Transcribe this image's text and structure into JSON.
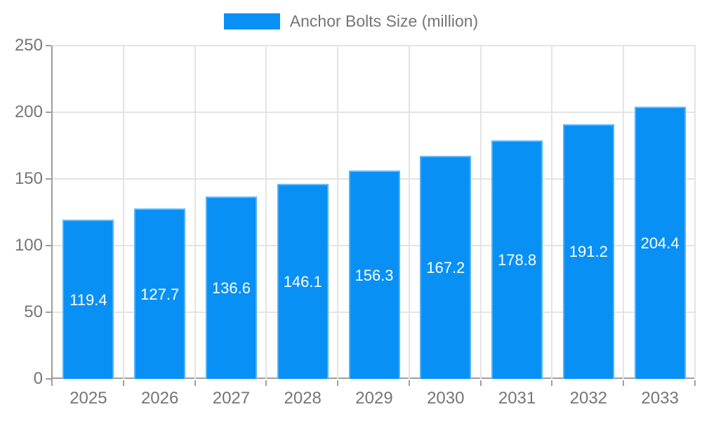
{
  "legend": {
    "label": "Anchor Bolts Size (million)"
  },
  "chart_data": {
    "type": "bar",
    "title": "Anchor Bolts Size (million)",
    "categories": [
      "2025",
      "2026",
      "2027",
      "2028",
      "2029",
      "2030",
      "2031",
      "2032",
      "2033"
    ],
    "series": [
      {
        "name": "Anchor Bolts Size (million)",
        "values": [
          119.4,
          127.7,
          136.6,
          146.1,
          156.3,
          167.2,
          178.8,
          191.2,
          204.4
        ]
      }
    ],
    "xlabel": "",
    "ylabel": "",
    "ylim": [
      0,
      250
    ],
    "yticks": [
      0,
      50,
      100,
      150,
      200,
      250
    ],
    "grid": true,
    "legend_position": "top-center",
    "bar_color": "#0990F5",
    "bar_label_color": "#ffffff",
    "axis_color": "#9e9e9e",
    "grid_color": "#e4e4e4",
    "tick_text_color": "#757575"
  }
}
